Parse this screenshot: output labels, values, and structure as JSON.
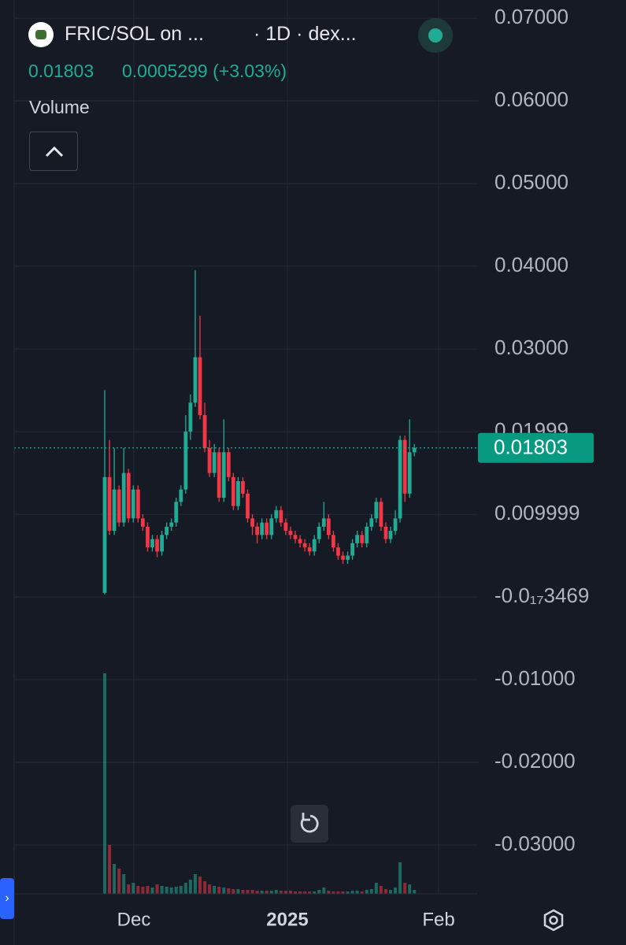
{
  "chart_data": {
    "type": "candlestick",
    "title": "FRIC/SOL on ...",
    "subtitle": "· 1D · dex...",
    "last_price": 0.01803,
    "change": "0.0005299 (+3.03%)",
    "volume_label": "Volume",
    "up_color": "#22ab94",
    "down_color": "#f23645",
    "grid": true,
    "ylim": [
      -0.0359,
      0.0722
    ],
    "yticks": [
      {
        "value": -0.03,
        "label": "-0.03000"
      },
      {
        "value": -0.02,
        "label": "-0.02000"
      },
      {
        "value": -0.01,
        "label": "-0.01000"
      },
      {
        "value": -3.469e-18,
        "label": "-0.0₁₇3469"
      },
      0.009999,
      0.01999,
      {
        "value": 0.03,
        "label": "0.03000"
      },
      {
        "value": 0.04,
        "label": "0.04000"
      },
      {
        "value": 0.05,
        "label": "0.05000"
      },
      {
        "value": 0.06,
        "label": "0.06000"
      },
      {
        "value": 0.07,
        "label": "0.07000"
      }
    ],
    "x_labels": [
      "Dec",
      "2025",
      "Feb"
    ],
    "open": [
      0.0005,
      0.0145,
      0.008,
      0.013,
      0.009,
      0.015,
      0.0095,
      0.013,
      0.0095,
      0.0085,
      0.006,
      0.007,
      0.0055,
      0.0075,
      0.0085,
      0.009,
      0.0115,
      0.013,
      0.02,
      0.0235,
      0.029,
      0.022,
      0.018,
      0.015,
      0.0175,
      0.012,
      0.0175,
      0.0145,
      0.011,
      0.014,
      0.0125,
      0.0095,
      0.0085,
      0.0075,
      0.009,
      0.0075,
      0.0095,
      0.0105,
      0.009,
      0.008,
      0.0075,
      0.007,
      0.0065,
      0.006,
      0.0055,
      0.007,
      0.0085,
      0.0095,
      0.0075,
      0.006,
      0.005,
      0.0045,
      0.005,
      0.0065,
      0.0075,
      0.0065,
      0.0085,
      0.0095,
      0.0115,
      0.0085,
      0.007,
      0.008,
      0.0095,
      0.019,
      0.0125,
      0.0175
    ],
    "high": [
      0.025,
      0.019,
      0.018,
      0.0135,
      0.018,
      0.0155,
      0.0135,
      0.0135,
      0.01,
      0.009,
      0.0075,
      0.0075,
      0.008,
      0.009,
      0.0095,
      0.012,
      0.0135,
      0.022,
      0.0245,
      0.0395,
      0.034,
      0.0235,
      0.019,
      0.0185,
      0.018,
      0.0215,
      0.018,
      0.015,
      0.0145,
      0.0145,
      0.013,
      0.01,
      0.009,
      0.0095,
      0.0095,
      0.01,
      0.011,
      0.011,
      0.0095,
      0.0085,
      0.008,
      0.0075,
      0.007,
      0.0065,
      0.0075,
      0.009,
      0.0115,
      0.01,
      0.008,
      0.0065,
      0.0055,
      0.0055,
      0.007,
      0.008,
      0.008,
      0.009,
      0.01,
      0.012,
      0.012,
      0.009,
      0.0085,
      0.0105,
      0.0195,
      0.0195,
      0.0215,
      0.0185
    ],
    "low": [
      0.0003,
      0.0075,
      0.0075,
      0.0085,
      0.0085,
      0.009,
      0.009,
      0.009,
      0.008,
      0.0055,
      0.0055,
      0.0048,
      0.005,
      0.007,
      0.008,
      0.0085,
      0.011,
      0.0125,
      0.019,
      0.023,
      0.0215,
      0.0175,
      0.0145,
      0.0145,
      0.0115,
      0.0115,
      0.014,
      0.0105,
      0.0105,
      0.012,
      0.009,
      0.0075,
      0.0065,
      0.007,
      0.007,
      0.007,
      0.009,
      0.0085,
      0.0075,
      0.007,
      0.0065,
      0.006,
      0.0055,
      0.005,
      0.005,
      0.0065,
      0.008,
      0.007,
      0.0055,
      0.0045,
      0.004,
      0.004,
      0.0045,
      0.006,
      0.006,
      0.006,
      0.008,
      0.009,
      0.008,
      0.0065,
      0.0065,
      0.0075,
      0.009,
      0.0115,
      0.012,
      0.017
    ],
    "close": [
      0.0145,
      0.008,
      0.013,
      0.009,
      0.015,
      0.0095,
      0.013,
      0.0095,
      0.0085,
      0.006,
      0.007,
      0.0055,
      0.0075,
      0.0085,
      0.009,
      0.0115,
      0.013,
      0.02,
      0.0235,
      0.029,
      0.022,
      0.018,
      0.015,
      0.0175,
      0.012,
      0.0175,
      0.0145,
      0.011,
      0.014,
      0.0125,
      0.0095,
      0.0085,
      0.0075,
      0.009,
      0.0075,
      0.0095,
      0.0105,
      0.009,
      0.008,
      0.0075,
      0.007,
      0.0065,
      0.006,
      0.0055,
      0.007,
      0.0085,
      0.0095,
      0.0075,
      0.006,
      0.005,
      0.0045,
      0.005,
      0.0065,
      0.0075,
      0.0065,
      0.0085,
      0.0095,
      0.0115,
      0.0085,
      0.007,
      0.008,
      0.0095,
      0.019,
      0.0125,
      0.0175,
      0.01803
    ],
    "volume": [
      280,
      62,
      38,
      32,
      25,
      12,
      14,
      10,
      9,
      10,
      8,
      12,
      10,
      9,
      8,
      9,
      10,
      14,
      18,
      25,
      22,
      16,
      12,
      10,
      9,
      8,
      7,
      6,
      6,
      5,
      5,
      5,
      4,
      4,
      4,
      4,
      5,
      4,
      4,
      4,
      3,
      3,
      3,
      3,
      3,
      5,
      8,
      4,
      3,
      3,
      3,
      3,
      4,
      4,
      3,
      5,
      6,
      14,
      10,
      6,
      5,
      8,
      40,
      14,
      12,
      5
    ]
  }
}
